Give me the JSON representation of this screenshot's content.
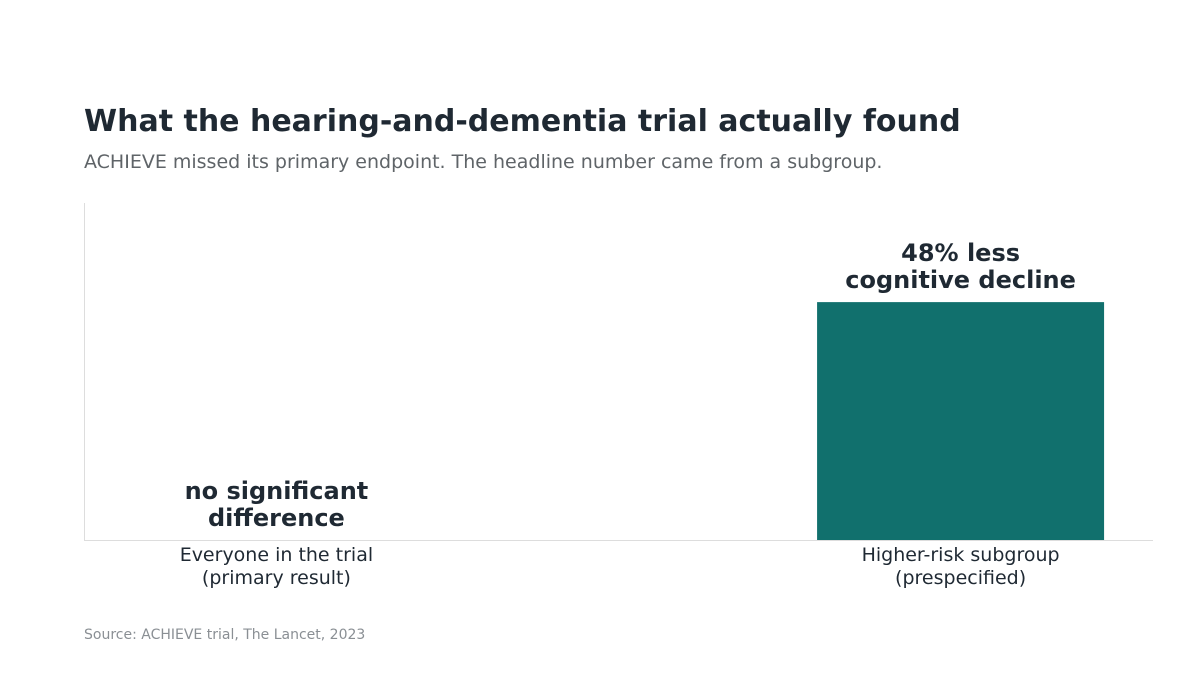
{
  "header": {
    "title": "What the hearing-and-dementia trial actually found",
    "subtitle": "ACHIEVE missed its primary endpoint. The headline number came from a subgroup."
  },
  "footer": {
    "source": "Source: ACHIEVE trial, The Lancet, 2023"
  },
  "colors": {
    "bar": "#11706d",
    "axis": "#dddddd",
    "text": "#1f2933"
  },
  "chart_data": {
    "type": "bar",
    "categories": [
      [
        "Everyone in the trial",
        "(primary result)"
      ],
      [
        "Higher-risk subgroup",
        "(prespecified)"
      ]
    ],
    "values": [
      0,
      48
    ],
    "data_labels": [
      [
        "no significant",
        "difference"
      ],
      [
        "48% less",
        "cognitive decline"
      ]
    ],
    "ylim": [
      0,
      68
    ],
    "grid": false,
    "legend": "none"
  }
}
